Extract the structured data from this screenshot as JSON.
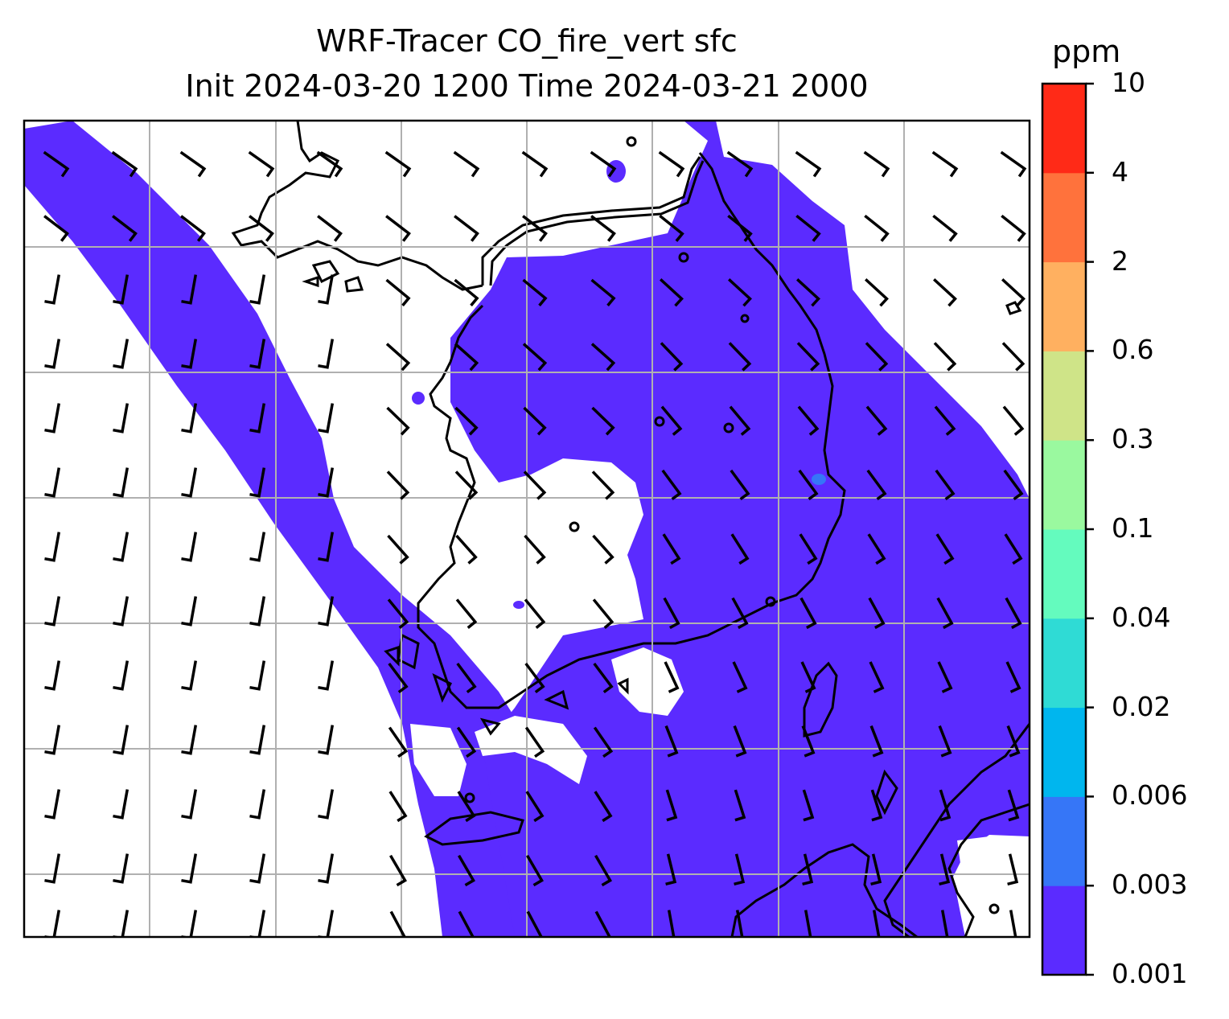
{
  "title": {
    "line1": "WRF-Tracer CO_fire_vert sfc",
    "line2": "Init 2024-03-20 1200 Time 2024-03-21 2000"
  },
  "colorbar": {
    "unit": "ppm",
    "levels": [
      "0.001",
      "0.003",
      "0.006",
      "0.02",
      "0.04",
      "0.1",
      "0.3",
      "0.6",
      "2",
      "4",
      "10"
    ],
    "colors": [
      "#5b2bff",
      "#3676f7",
      "#00b6ee",
      "#2fdbd5",
      "#64fbbe",
      "#9af99f",
      "#cfe488",
      "#ffb060",
      "#ff723c",
      "#ff2a17"
    ]
  },
  "map": {
    "fill_color": "#5b2bff",
    "hotspot_color": "#3676f7",
    "gridline_color": "#b0b0b0",
    "barbs": "wind-barbs"
  }
}
